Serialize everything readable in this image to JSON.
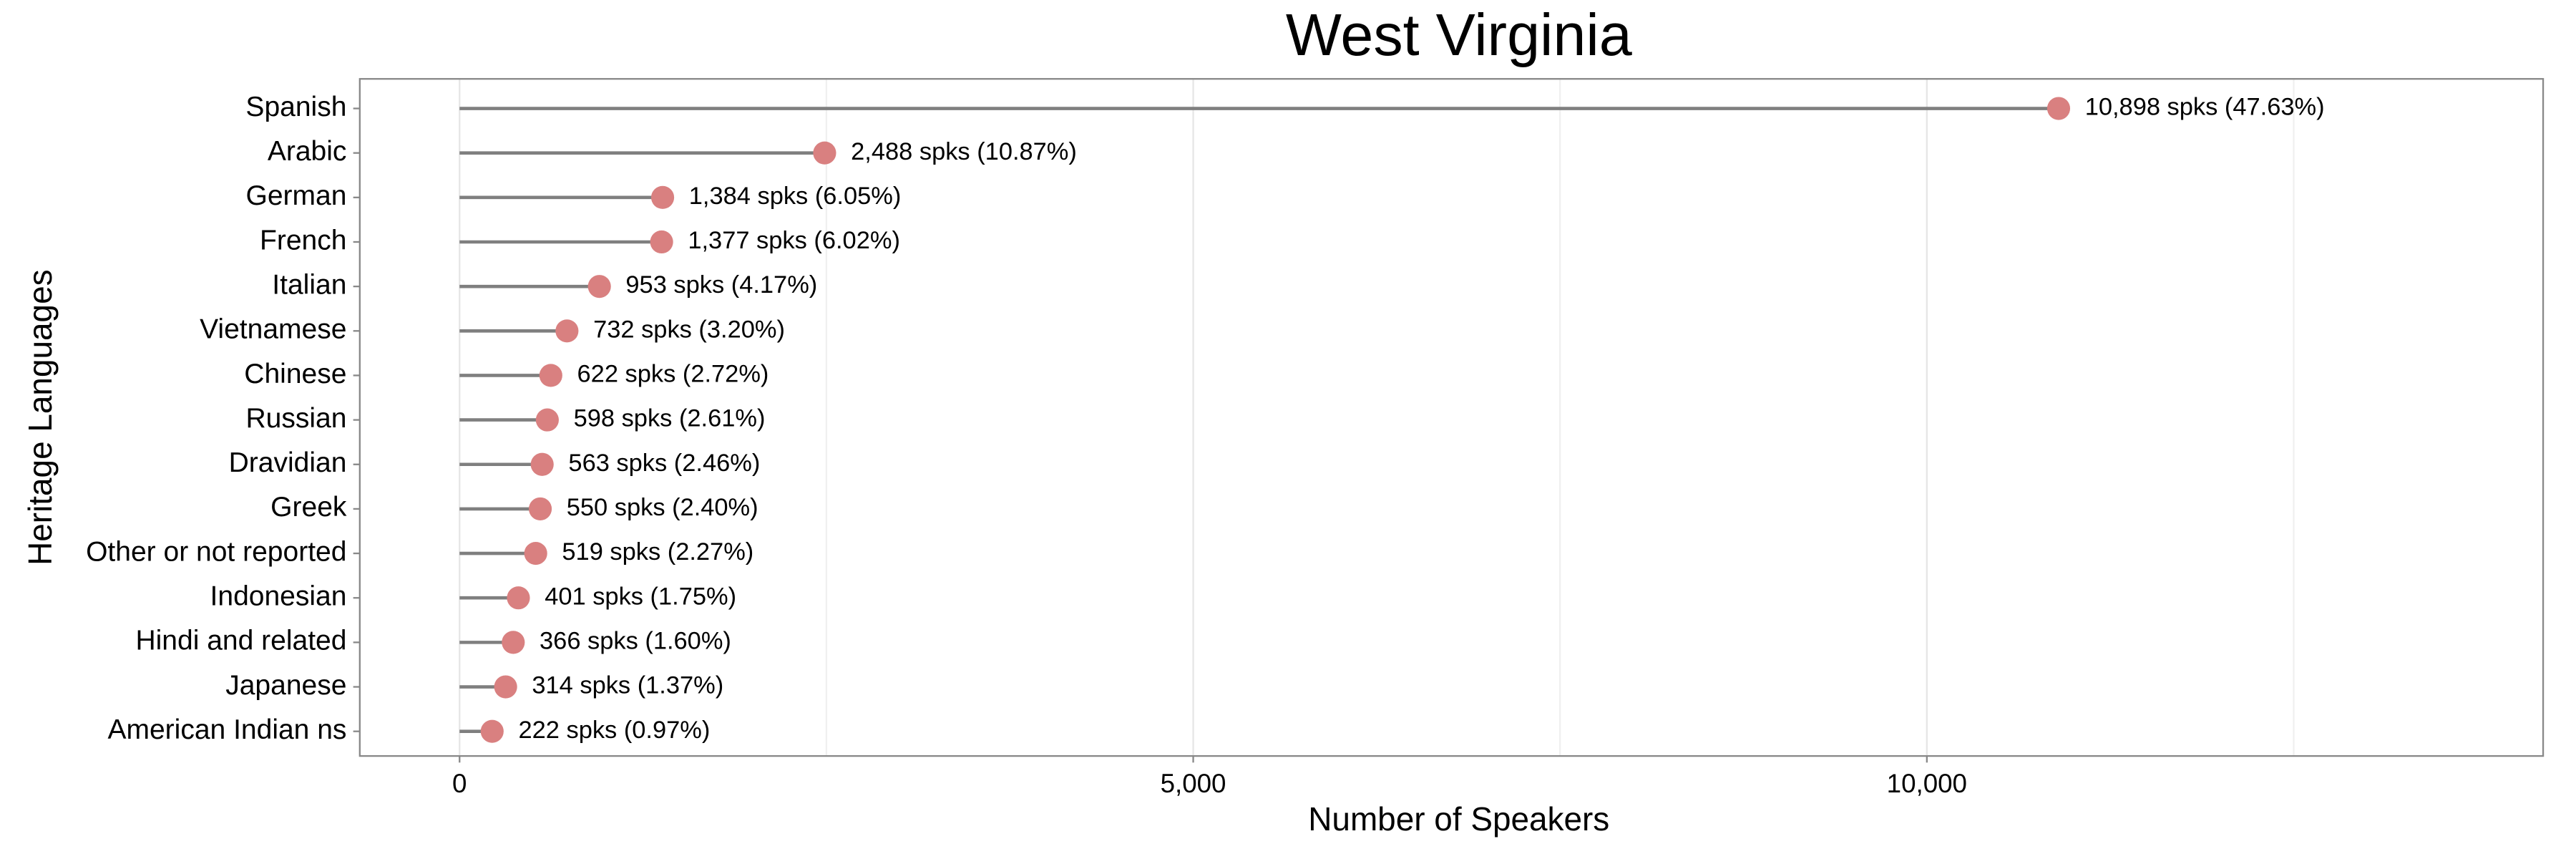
{
  "chart_data": {
    "type": "lollipop",
    "title": "West Virginia",
    "x_label": "Number of Speakers",
    "y_label": "Heritage Languages",
    "categories": [
      "Spanish",
      "Arabic",
      "German",
      "French",
      "Italian",
      "Vietnamese",
      "Chinese",
      "Russian",
      "Dravidian",
      "Greek",
      "Other or not reported",
      "Indonesian",
      "Hindi and related",
      "Japanese",
      "American Indian ns"
    ],
    "values": [
      10898,
      2488,
      1384,
      1377,
      953,
      732,
      622,
      598,
      563,
      550,
      519,
      401,
      366,
      314,
      222
    ],
    "value_labels": [
      "10,898 spks (47.63%)",
      "2,488 spks (10.87%)",
      "1,384 spks (6.05%)",
      "1,377 spks (6.02%)",
      "953 spks (4.17%)",
      "732 spks (3.20%)",
      "622 spks (2.72%)",
      "598 spks (2.61%)",
      "563 spks (2.46%)",
      "550 spks (2.40%)",
      "519 spks (2.27%)",
      "401 spks (1.75%)",
      "366 spks (1.60%)",
      "314 spks (1.37%)",
      "222 spks (0.97%)"
    ],
    "color": "#d98080",
    "stem_color": "#7f7f7f",
    "xlim": [
      -680,
      14200
    ],
    "xticks": [
      0,
      {
        "value": 5000,
        "label": "5,000"
      },
      {
        "value": 10000,
        "label": "10,000"
      }
    ],
    "minor_grid_x": [
      2500,
      7500,
      12500
    ],
    "grid": true
  }
}
